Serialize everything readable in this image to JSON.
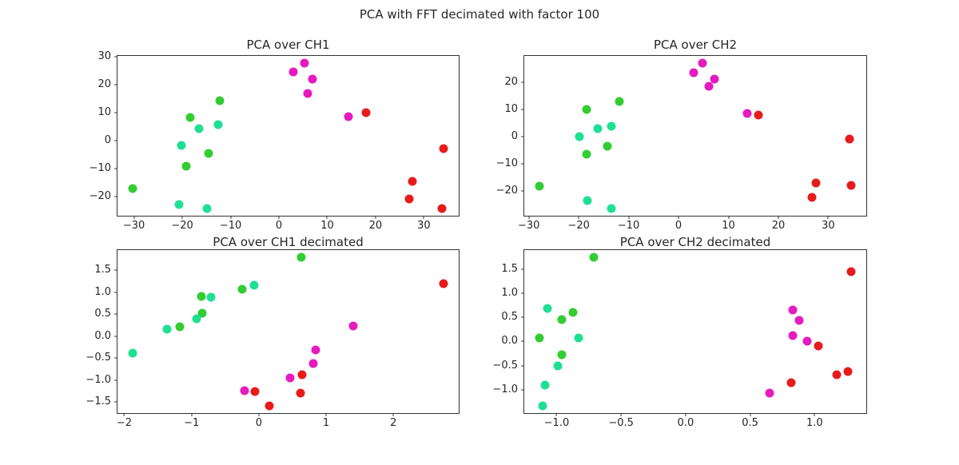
{
  "figure": {
    "suptitle": "PCA with FFT decimated with factor 100",
    "background": "#ffffff",
    "text_color": "#262626",
    "spine_color": "#333333"
  },
  "colors": {
    "magenta": "#e61abe",
    "red": "#e81b1b",
    "limegreen": "#32cd32",
    "springgreen": "#1fdf94"
  },
  "chart_data": [
    {
      "type": "scatter",
      "title": "PCA over CH1",
      "grid": false,
      "legend": "none",
      "xlim_rule": "data range plus 5% margins",
      "xticks": [
        -30,
        -20,
        -10,
        0,
        10,
        20,
        30
      ],
      "xtick_labels": [
        "−30",
        "−20",
        "−10",
        "0",
        "10",
        "20",
        "30"
      ],
      "yticks": [
        -20,
        -10,
        0,
        10,
        20,
        30
      ],
      "ytick_labels": [
        "−20",
        "−10",
        "0",
        "10",
        "20",
        "30"
      ],
      "series": [
        {
          "name": "magenta",
          "color": "magenta",
          "points": [
            [
              5.3,
              27.6
            ],
            [
              3.0,
              24.5
            ],
            [
              7.0,
              22.0
            ],
            [
              6.0,
              16.8
            ],
            [
              14.4,
              8.4
            ]
          ]
        },
        {
          "name": "red",
          "color": "red",
          "points": [
            [
              18.0,
              10.0
            ],
            [
              34.0,
              -3.0
            ],
            [
              27.6,
              -14.6
            ],
            [
              27.0,
              -20.8
            ],
            [
              33.8,
              -24.2
            ]
          ]
        },
        {
          "name": "limegreen",
          "color": "limegreen",
          "points": [
            [
              -12.2,
              14.1
            ],
            [
              -18.3,
              8.3
            ],
            [
              -14.6,
              -4.5
            ],
            [
              -19.2,
              -9.1
            ],
            [
              -30.2,
              -17.0
            ]
          ]
        },
        {
          "name": "springgreen",
          "color": "springgreen",
          "points": [
            [
              -12.6,
              5.6
            ],
            [
              -16.6,
              4.3
            ],
            [
              -20.2,
              -1.8
            ],
            [
              -20.6,
              -22.9
            ],
            [
              -14.9,
              -24.1
            ]
          ]
        }
      ]
    },
    {
      "type": "scatter",
      "title": "PCA over CH2",
      "grid": false,
      "legend": "none",
      "xlim_rule": "data range plus 5% margins",
      "xticks": [
        -30,
        -20,
        -10,
        0,
        10,
        20,
        30
      ],
      "xtick_labels": [
        "−30",
        "−20",
        "−10",
        "0",
        "10",
        "20",
        "30"
      ],
      "yticks": [
        -20,
        -10,
        0,
        10,
        20
      ],
      "ytick_labels": [
        "−20",
        "−10",
        "0",
        "10",
        "20"
      ],
      "series": [
        {
          "name": "magenta",
          "color": "magenta",
          "points": [
            [
              4.8,
              26.9
            ],
            [
              3.0,
              23.4
            ],
            [
              7.2,
              21.1
            ],
            [
              6.0,
              18.3
            ],
            [
              13.8,
              8.4
            ]
          ]
        },
        {
          "name": "red",
          "color": "red",
          "points": [
            [
              16.0,
              7.9
            ],
            [
              34.2,
              -1.0
            ],
            [
              27.6,
              -16.9
            ],
            [
              34.5,
              -17.9
            ],
            [
              26.8,
              -22.4
            ]
          ]
        },
        {
          "name": "limegreen",
          "color": "limegreen",
          "points": [
            [
              -11.8,
              12.8
            ],
            [
              -18.4,
              10.0
            ],
            [
              -14.2,
              -3.6
            ],
            [
              -18.5,
              -6.6
            ],
            [
              -27.8,
              -18.2
            ]
          ]
        },
        {
          "name": "springgreen",
          "color": "springgreen",
          "points": [
            [
              -13.4,
              3.9
            ],
            [
              -16.2,
              2.9
            ],
            [
              -19.9,
              -0.1
            ],
            [
              -18.3,
              -23.6
            ],
            [
              -13.5,
              -26.4
            ]
          ]
        }
      ]
    },
    {
      "type": "scatter",
      "title": "PCA over CH1 decimated",
      "grid": false,
      "legend": "none",
      "xlim_rule": "data range plus 5% margins",
      "xticks": [
        -2,
        -1,
        0,
        1,
        2
      ],
      "xtick_labels": [
        "−2",
        "−1",
        "0",
        "1",
        "2"
      ],
      "yticks": [
        -1.5,
        -1.0,
        -0.5,
        0.0,
        0.5,
        1.0,
        1.5
      ],
      "ytick_labels": [
        "−1.5",
        "−1.0",
        "−0.5",
        "0.0",
        "0.5",
        "1.0",
        "1.5"
      ],
      "series": [
        {
          "name": "magenta",
          "color": "magenta",
          "points": [
            [
              1.4,
              0.23
            ],
            [
              0.85,
              -0.32
            ],
            [
              0.81,
              -0.62
            ],
            [
              0.46,
              -0.94
            ],
            [
              -0.21,
              -1.24
            ]
          ]
        },
        {
          "name": "red",
          "color": "red",
          "points": [
            [
              2.74,
              1.2
            ],
            [
              0.64,
              -0.87
            ],
            [
              0.62,
              -1.3
            ],
            [
              -0.06,
              -1.26
            ],
            [
              0.16,
              -1.58
            ]
          ]
        },
        {
          "name": "limegreen",
          "color": "limegreen",
          "points": [
            [
              0.63,
              1.79
            ],
            [
              -0.25,
              1.07
            ],
            [
              -0.85,
              0.91
            ],
            [
              -0.84,
              0.53
            ],
            [
              -1.18,
              0.21
            ]
          ]
        },
        {
          "name": "springgreen",
          "color": "springgreen",
          "points": [
            [
              -0.07,
              1.16
            ],
            [
              -0.71,
              0.88
            ],
            [
              -0.93,
              0.4
            ],
            [
              -1.37,
              0.16
            ],
            [
              -1.87,
              -0.38
            ]
          ]
        }
      ]
    },
    {
      "type": "scatter",
      "title": "PCA over CH2 decimated",
      "grid": false,
      "legend": "none",
      "xlim_rule": "data range plus 5% margins",
      "xticks": [
        -1.0,
        -0.5,
        0.0,
        0.5,
        1.0
      ],
      "xtick_labels": [
        "−1.0",
        "−0.5",
        "0.0",
        "0.5",
        "1.0"
      ],
      "yticks": [
        -1.0,
        -0.5,
        0.0,
        0.5,
        1.0,
        1.5
      ],
      "ytick_labels": [
        "−1.0",
        "−0.5",
        "0.0",
        "0.5",
        "1.0",
        "1.5"
      ],
      "series": [
        {
          "name": "magenta",
          "color": "magenta",
          "points": [
            [
              0.83,
              0.65
            ],
            [
              0.88,
              0.44
            ],
            [
              0.83,
              0.13
            ],
            [
              0.94,
              0.01
            ],
            [
              0.65,
              -1.07
            ]
          ]
        },
        {
          "name": "red",
          "color": "red",
          "points": [
            [
              1.28,
              1.44
            ],
            [
              1.03,
              -0.09
            ],
            [
              1.26,
              -0.63
            ],
            [
              1.17,
              -0.69
            ],
            [
              0.82,
              -0.85
            ]
          ]
        },
        {
          "name": "limegreen",
          "color": "limegreen",
          "points": [
            [
              -0.71,
              1.74
            ],
            [
              -0.87,
              0.61
            ],
            [
              -0.96,
              0.45
            ],
            [
              -1.13,
              0.07
            ],
            [
              -0.96,
              -0.28
            ]
          ]
        },
        {
          "name": "springgreen",
          "color": "springgreen",
          "points": [
            [
              -1.07,
              0.68
            ],
            [
              -0.83,
              0.07
            ],
            [
              -0.99,
              -0.5
            ],
            [
              -1.09,
              -0.9
            ],
            [
              -1.11,
              -1.33
            ]
          ]
        }
      ]
    }
  ]
}
